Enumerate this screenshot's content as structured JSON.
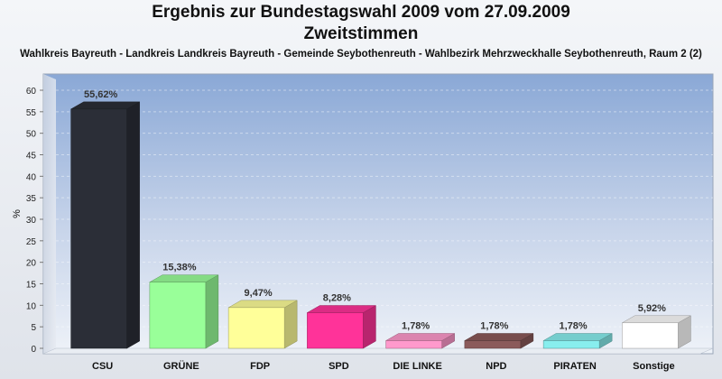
{
  "header": {
    "title": "Ergebnis zur Bundestagswahl 2009 vom 27.09.2009",
    "subtitle": "Zweitstimmen",
    "location": "Wahlkreis Bayreuth - Landkreis Landkreis Bayreuth - Gemeinde Seybothenreuth - Wahlbezirk Mehrzweckhalle Seybothenreuth, Raum 2 (2)"
  },
  "chart_data": {
    "type": "bar",
    "title": "Ergebnis zur Bundestagswahl 2009 vom 27.09.2009",
    "subtitle": "Zweitstimmen",
    "xlabel": "",
    "ylabel": "%",
    "ylim": [
      0,
      60
    ],
    "yticks": [
      0,
      5,
      10,
      15,
      20,
      25,
      30,
      35,
      40,
      45,
      50,
      55,
      60
    ],
    "grid": true,
    "categories": [
      "CSU",
      "GRÜNE",
      "FDP",
      "SPD",
      "DIE LINKE",
      "NPD",
      "PIRATEN",
      "Sonstige"
    ],
    "values": [
      55.62,
      15.38,
      9.47,
      8.28,
      1.78,
      1.78,
      1.78,
      5.92
    ],
    "value_labels": [
      "55,62%",
      "15,38%",
      "9,47%",
      "8,28%",
      "1,78%",
      "1,78%",
      "1,78%",
      "5,92%"
    ],
    "colors": [
      "#2b2e37",
      "#99ff99",
      "#ffff99",
      "#ff3399",
      "#ff99cc",
      "#8b5a5a",
      "#88eeee",
      "#ffffff"
    ]
  }
}
